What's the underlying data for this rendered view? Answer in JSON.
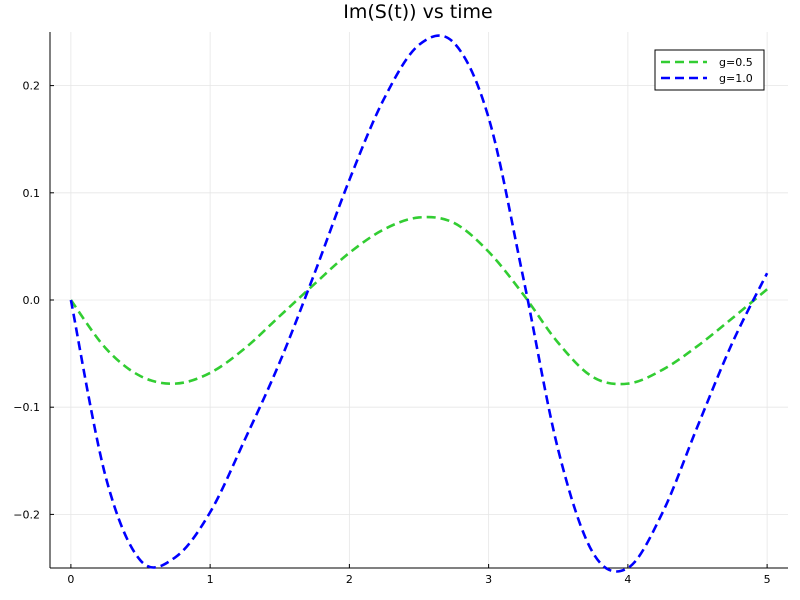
{
  "chart_data": {
    "type": "line",
    "title": "Im(S(t)) vs time",
    "xlabel": "",
    "ylabel": "",
    "xlim": [
      -0.15,
      5.15
    ],
    "ylim": [
      -0.25,
      0.25
    ],
    "x_ticks": [
      0,
      1,
      2,
      3,
      4,
      5
    ],
    "x_tick_labels": [
      "0",
      "1",
      "2",
      "3",
      "4",
      "5"
    ],
    "y_ticks": [
      -0.2,
      -0.1,
      0.0,
      0.1,
      0.2
    ],
    "y_tick_labels": [
      "−0.2",
      "−0.1",
      "0.0",
      "0.1",
      "0.2"
    ],
    "grid": true,
    "legend_position": "top-right",
    "x": [
      0,
      0.25,
      0.5,
      0.75,
      1.0,
      1.25,
      1.5,
      1.75,
      2.0,
      2.25,
      2.5,
      2.75,
      3.0,
      3.25,
      3.5,
      3.75,
      4.0,
      4.25,
      4.5,
      4.75,
      5.0
    ],
    "series": [
      {
        "name": "g=0.5",
        "color": "#32cd32",
        "style": "dashed",
        "values": [
          0.0,
          -0.045,
          -0.071,
          -0.078,
          -0.068,
          -0.045,
          -0.015,
          0.015,
          0.044,
          0.066,
          0.077,
          0.072,
          0.045,
          0.005,
          -0.04,
          -0.072,
          -0.078,
          -0.065,
          -0.043,
          -0.017,
          0.01
        ]
      },
      {
        "name": "g=1.0",
        "color": "#0000ff",
        "style": "dashed",
        "values": [
          0.0,
          -0.165,
          -0.243,
          -0.24,
          -0.198,
          -0.13,
          -0.058,
          0.025,
          0.112,
          0.188,
          0.238,
          0.24,
          0.17,
          0.02,
          -0.14,
          -0.236,
          -0.25,
          -0.198,
          -0.118,
          -0.04,
          0.025
        ]
      }
    ]
  }
}
